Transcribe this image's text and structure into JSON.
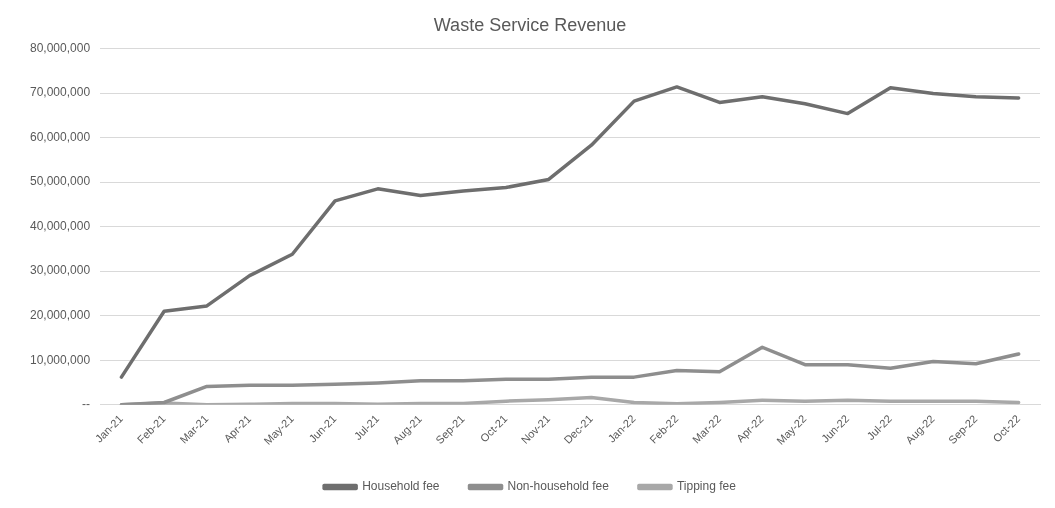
{
  "chart_data": {
    "type": "line",
    "title": "Waste Service Revenue",
    "categories": [
      "Jan-21",
      "Feb-21",
      "Mar-21",
      "Apr-21",
      "May-21",
      "Jun-21",
      "Jul-21",
      "Aug-21",
      "Sep-21",
      "Oct-21",
      "Nov-21",
      "Dec-21",
      "Jan-22",
      "Feb-22",
      "Mar-22",
      "Apr-22",
      "May-22",
      "Jun-22",
      "Jul-22",
      "Aug-22",
      "Sep-22",
      "Oct-22"
    ],
    "series": [
      {
        "name": "Household fee",
        "color": "#6e6e6e",
        "values": [
          6200000,
          21000000,
          22200000,
          29000000,
          33800000,
          45800000,
          48500000,
          47000000,
          48000000,
          48800000,
          50600000,
          58300000,
          68200000,
          71400000,
          67900000,
          69200000,
          67600000,
          65400000,
          71200000,
          69900000,
          69200000,
          68900000
        ]
      },
      {
        "name": "Non-household fee",
        "color": "#8e8e8e",
        "values": [
          0,
          500000,
          4100000,
          4400000,
          4400000,
          4600000,
          4900000,
          5400000,
          5400000,
          5700000,
          5700000,
          6200000,
          6200000,
          7700000,
          7400000,
          12900000,
          9000000,
          9000000,
          8200000,
          9700000,
          9200000,
          11400000
        ]
      },
      {
        "name": "Tipping fee",
        "color": "#a8a8a8",
        "values": [
          0,
          400000,
          0,
          100000,
          300000,
          300000,
          100000,
          300000,
          300000,
          800000,
          1100000,
          1600000,
          500000,
          200000,
          500000,
          1000000,
          800000,
          1000000,
          800000,
          800000,
          800000,
          500000
        ]
      }
    ],
    "ylim": [
      0,
      80000000
    ],
    "yticks": [
      {
        "value": 0,
        "label": "--"
      },
      {
        "value": 10000000,
        "label": "10,000,000"
      },
      {
        "value": 20000000,
        "label": "20,000,000"
      },
      {
        "value": 30000000,
        "label": "30,000,000"
      },
      {
        "value": 40000000,
        "label": "40,000,000"
      },
      {
        "value": 50000000,
        "label": "50,000,000"
      },
      {
        "value": 60000000,
        "label": "60,000,000"
      },
      {
        "value": 70000000,
        "label": "70,000,000"
      },
      {
        "value": 80000000,
        "label": "80,000,000"
      }
    ],
    "grid": "y",
    "legend": "bottom",
    "marker": "none",
    "line_style": "solid"
  }
}
